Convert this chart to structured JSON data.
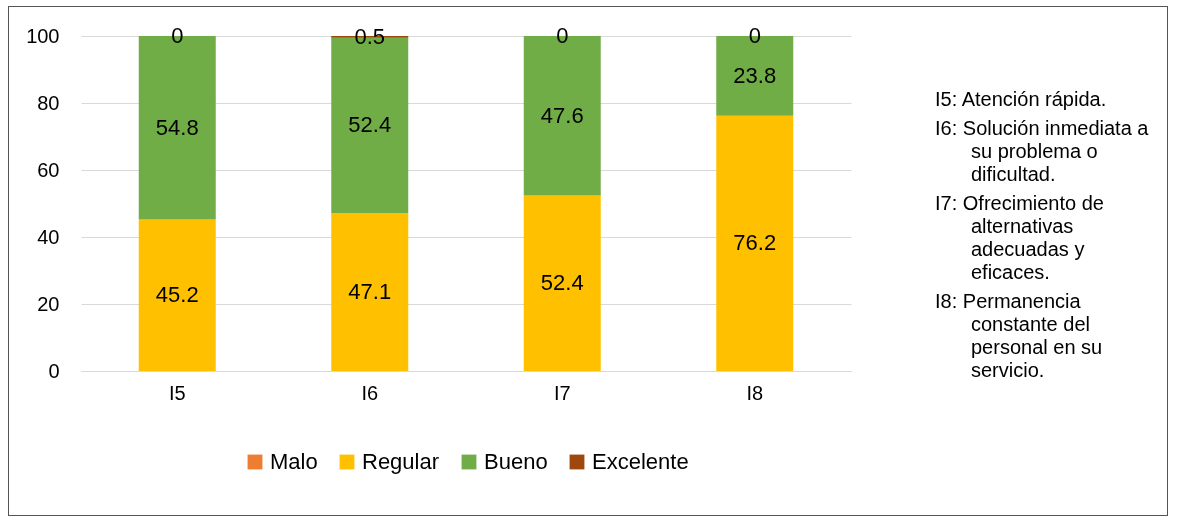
{
  "chart_data": {
    "type": "bar",
    "stacked": true,
    "categories": [
      "I5",
      "I6",
      "I7",
      "I8"
    ],
    "series": [
      {
        "name": "Malo",
        "color": "#ed7d31",
        "values": [
          0,
          0,
          0,
          0
        ],
        "value_labels": [
          null,
          null,
          null,
          null
        ]
      },
      {
        "name": "Regular",
        "color": "#ffc000",
        "values": [
          45.2,
          47.1,
          52.4,
          76.2
        ],
        "value_labels": [
          "45.2",
          "47.1",
          "52.4",
          "76.2"
        ]
      },
      {
        "name": "Bueno",
        "color": "#70ad47",
        "values": [
          54.8,
          52.4,
          47.6,
          23.8
        ],
        "value_labels": [
          "54.8",
          "52.4",
          "47.6",
          "23.8"
        ]
      },
      {
        "name": "Excelente",
        "color": "#9e480e",
        "values": [
          0,
          0.5,
          0,
          0
        ],
        "value_labels": [
          "0",
          "0.5",
          "0",
          "0"
        ]
      }
    ],
    "ylim": [
      0,
      100
    ],
    "yticks": [
      0,
      20,
      40,
      60,
      80,
      100
    ],
    "grid": "y",
    "legend": "bottom",
    "annotations": [
      "I5: Atención rápida.",
      "I6: Solución inmediata a su problema o dificultad.",
      "I7: Ofrecimiento de alternativas adecuadas y eficaces.",
      "I8: Permanencia constante del personal en su servicio."
    ]
  }
}
